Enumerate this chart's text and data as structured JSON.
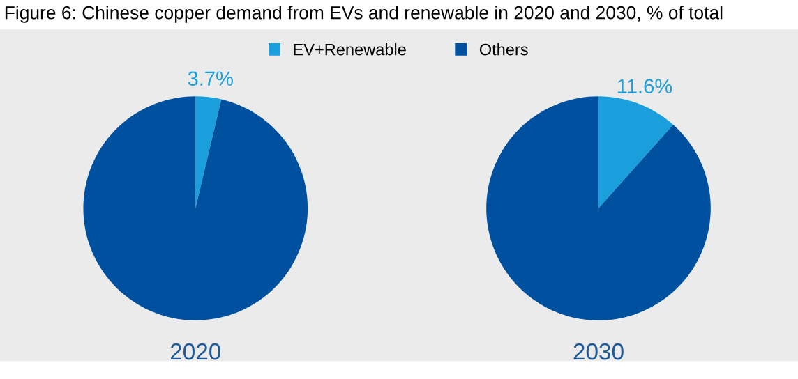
{
  "chart_data": [
    {
      "type": "pie",
      "title": "Figure 6: Chinese copper demand from EVs and renewable in 2020 and 2030, % of total",
      "categories": [
        "EV+Renewable",
        "Others"
      ],
      "values": [
        3.7,
        96.3
      ],
      "colors": [
        "#1a9fdc",
        "#0050a0"
      ],
      "value_labels": [
        "3.7%",
        null
      ],
      "xlabel": "2020",
      "legend": "top"
    },
    {
      "type": "pie",
      "categories": [
        null,
        null
      ],
      "values": [
        11.6,
        88.4
      ],
      "colors": [
        "#1a9fdc",
        "#0050a0"
      ],
      "value_labels": [
        "11.6%",
        null
      ],
      "xlabel": "2030"
    }
  ]
}
